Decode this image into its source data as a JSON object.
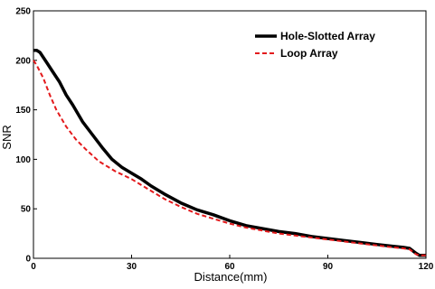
{
  "chart_data": {
    "type": "line",
    "title": "",
    "xlabel": "Distance(mm)",
    "ylabel": "SNR",
    "xlim": [
      0,
      120
    ],
    "ylim": [
      0,
      250
    ],
    "xticks": [
      0,
      30,
      60,
      90,
      120
    ],
    "yticks": [
      0,
      50,
      100,
      150,
      200,
      250
    ],
    "xtick_labels": [
      "0",
      "30",
      "60",
      "90",
      "120"
    ],
    "ytick_labels": [
      "0",
      "50",
      "100",
      "150",
      "200",
      "250"
    ],
    "grid": false,
    "legend_position": "top-right",
    "series": [
      {
        "name": "Hole-Slotted Array",
        "color": "#000000",
        "style": "solid",
        "x": [
          0,
          1,
          2,
          4,
          6,
          8,
          10,
          12,
          15,
          18,
          21,
          24,
          27,
          30,
          33,
          36,
          40,
          45,
          50,
          55,
          60,
          65,
          70,
          75,
          80,
          85,
          90,
          95,
          100,
          105,
          110,
          113,
          115,
          117,
          118,
          120
        ],
        "y": [
          210,
          210,
          208,
          198,
          188,
          178,
          165,
          155,
          138,
          125,
          112,
          100,
          92,
          86,
          80,
          73,
          65,
          56,
          49,
          44,
          38,
          33,
          30,
          27,
          25,
          22,
          20,
          18,
          16,
          14,
          12,
          11,
          10,
          5,
          3,
          3
        ]
      },
      {
        "name": "Loop Array",
        "color": "#e31a1c",
        "style": "dashed",
        "x": [
          0,
          1,
          3,
          5,
          7,
          10,
          13,
          16,
          20,
          25,
          30,
          35,
          40,
          45,
          50,
          55,
          60,
          65,
          70,
          75,
          80,
          85,
          90,
          95,
          100,
          105,
          110,
          113,
          115,
          117,
          118,
          120
        ],
        "y": [
          200,
          195,
          182,
          165,
          150,
          133,
          120,
          110,
          98,
          88,
          80,
          70,
          60,
          52,
          45,
          40,
          35,
          31,
          28,
          25,
          23,
          21,
          19,
          17,
          15,
          13,
          11,
          10,
          9,
          4,
          3,
          3
        ]
      }
    ]
  }
}
